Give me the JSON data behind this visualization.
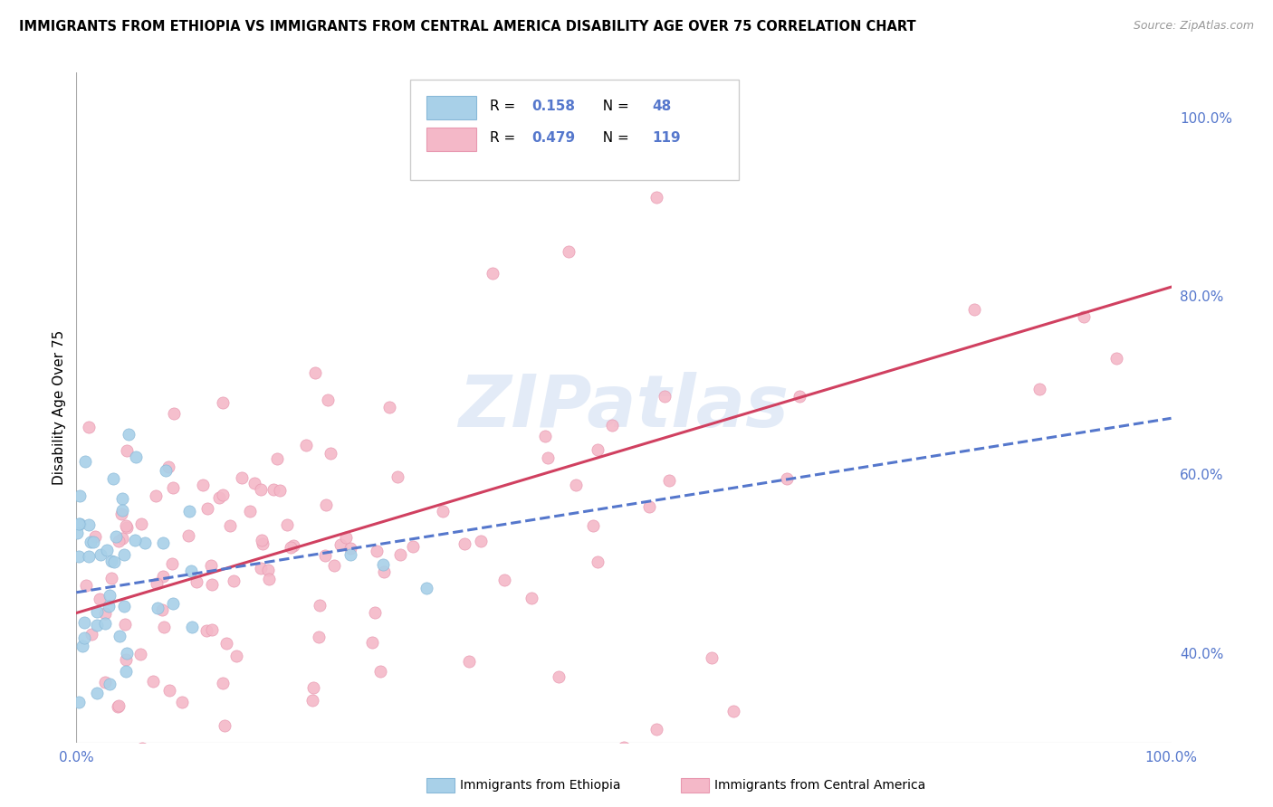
{
  "title": "IMMIGRANTS FROM ETHIOPIA VS IMMIGRANTS FROM CENTRAL AMERICA DISABILITY AGE OVER 75 CORRELATION CHART",
  "source": "Source: ZipAtlas.com",
  "ylabel": "Disability Age Over 75",
  "watermark": "ZIPatlas",
  "ethiopia_color": "#a8d0e8",
  "ethiopia_edge": "#88b8d8",
  "central_color": "#f4b8c8",
  "central_edge": "#e898b0",
  "trend_ethiopia_color": "#5577cc",
  "trend_central_color": "#d04060",
  "background_color": "#ffffff",
  "grid_color": "#cccccc",
  "xlim": [
    0.0,
    1.0
  ],
  "ylim": [
    0.3,
    1.05
  ],
  "ytick_values": [
    0.4,
    0.6,
    0.8,
    1.0
  ],
  "ytick_labels": [
    "40.0%",
    "60.0%",
    "80.0%",
    "100.0%"
  ],
  "R_eth": 0.158,
  "N_eth": 48,
  "R_cen": 0.479,
  "N_cen": 119,
  "eth_intercept": 0.468,
  "eth_slope": 0.195,
  "cen_intercept": 0.445,
  "cen_slope": 0.365,
  "tick_color": "#5577cc",
  "legend_text_color": "#5577cc"
}
